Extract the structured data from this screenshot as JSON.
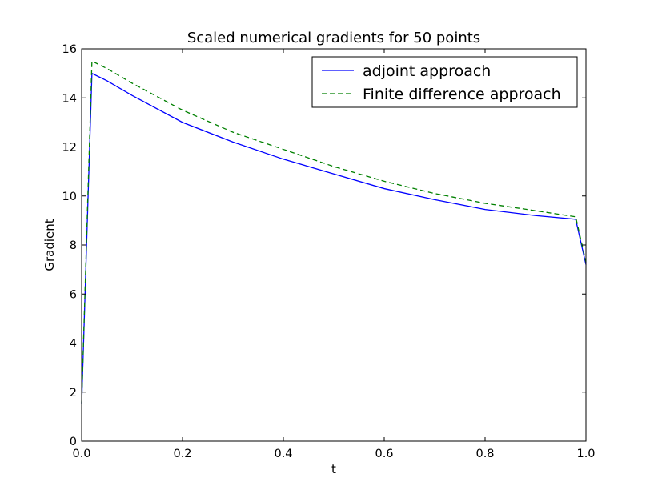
{
  "chart_data": {
    "type": "line",
    "title": "Scaled numerical gradients for 50 points",
    "xlabel": "t",
    "ylabel": "Gradient",
    "xlim": [
      0.0,
      1.0
    ],
    "ylim": [
      0,
      16
    ],
    "xticks": [
      "0.0",
      "0.2",
      "0.4",
      "0.6",
      "0.8",
      "1.0"
    ],
    "yticks": [
      "0",
      "2",
      "4",
      "6",
      "8",
      "10",
      "12",
      "14",
      "16"
    ],
    "grid": false,
    "legend_position": "upper-right",
    "series": [
      {
        "name": "adjoint approach",
        "color": "#0000ff",
        "dash": "solid",
        "x": [
          0.0,
          0.0204,
          0.05,
          0.1,
          0.2,
          0.3,
          0.4,
          0.5,
          0.6,
          0.7,
          0.8,
          0.9,
          0.9796,
          1.0
        ],
        "y": [
          1.5,
          15.0,
          14.7,
          14.1,
          13.0,
          12.2,
          11.5,
          10.9,
          10.3,
          9.85,
          9.45,
          9.2,
          9.05,
          7.2
        ]
      },
      {
        "name": "Finite difference approach",
        "color": "#008000",
        "dash": "dashed",
        "x": [
          0.0,
          0.0204,
          0.05,
          0.1,
          0.2,
          0.3,
          0.4,
          0.5,
          0.6,
          0.7,
          0.8,
          0.9,
          0.9796,
          1.0
        ],
        "y": [
          1.55,
          15.5,
          15.2,
          14.6,
          13.5,
          12.6,
          11.9,
          11.2,
          10.6,
          10.1,
          9.7,
          9.4,
          9.15,
          7.3
        ]
      }
    ]
  }
}
